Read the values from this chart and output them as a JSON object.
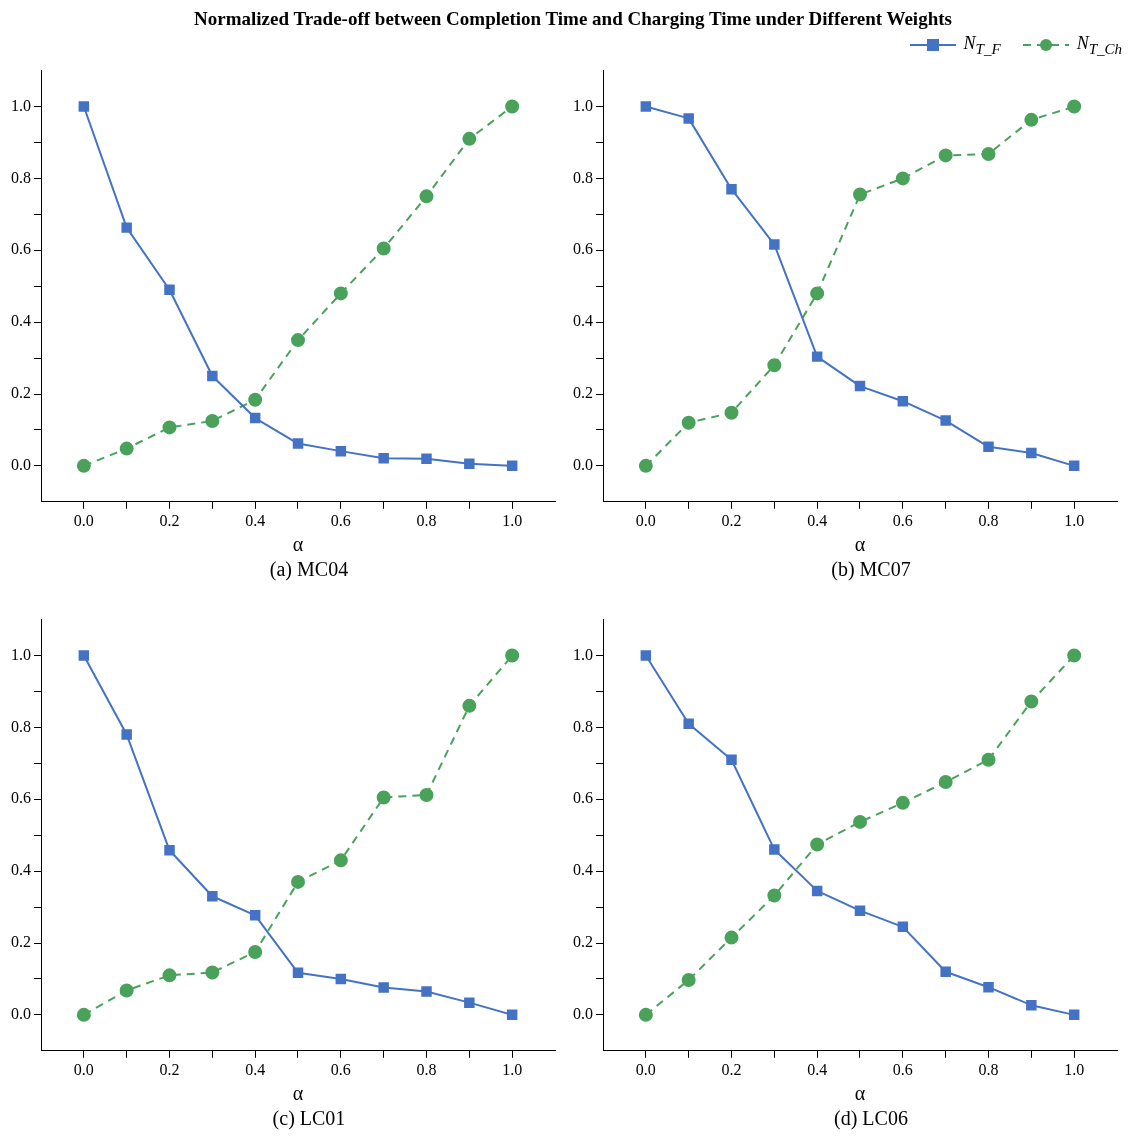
{
  "chart_data": [
    {
      "type": "line",
      "title": "Normalized Trade-off between Completion Time and Charging Time under Different Weights",
      "xlabel": "α",
      "annotations": [
        "(a) MC04"
      ],
      "x": [
        0,
        0.1,
        0.2,
        0.3,
        0.4,
        0.5,
        0.6,
        0.7,
        0.8,
        0.9,
        1.0
      ],
      "xlim": [
        -0.1,
        1.1
      ],
      "xticks": [
        {
          "value": 0,
          "label": "0.0"
        },
        {
          "value": 0.1,
          "label": null
        },
        {
          "value": 0.2,
          "label": "0.2"
        },
        {
          "value": 0.3,
          "label": null
        },
        {
          "value": 0.4,
          "label": "0.4"
        },
        {
          "value": 0.5,
          "label": null
        },
        {
          "value": 0.6,
          "label": "0.6"
        },
        {
          "value": 0.7,
          "label": null
        },
        {
          "value": 0.8,
          "label": "0.8"
        },
        {
          "value": 0.9,
          "label": null
        },
        {
          "value": 1,
          "label": "1.0"
        }
      ],
      "ylim": [
        -0.1,
        1.1
      ],
      "yticks": [
        {
          "value": 0,
          "label": "0.0"
        },
        {
          "value": 0.1,
          "label": null
        },
        {
          "value": 0.2,
          "label": "0.2"
        },
        {
          "value": 0.3,
          "label": null
        },
        {
          "value": 0.4,
          "label": "0.4"
        },
        {
          "value": 0.5,
          "label": null
        },
        {
          "value": 0.6,
          "label": "0.6"
        },
        {
          "value": 0.7,
          "label": null
        },
        {
          "value": 0.8,
          "label": "0.8"
        },
        {
          "value": 0.9,
          "label": null
        },
        {
          "value": 1,
          "label": "1.0"
        }
      ],
      "grid": false,
      "legend": false,
      "series": [
        {
          "color": "#4472c4",
          "marker": "square",
          "line_style": "solid",
          "values": [
            1.0,
            0.663,
            0.49,
            0.25,
            0.133,
            0.062,
            0.041,
            0.021,
            0.02,
            0.006,
            0.0
          ]
        },
        {
          "color": "#4aa25a",
          "marker": "circle",
          "line_style": "dashed",
          "values": [
            0.0,
            0.048,
            0.107,
            0.125,
            0.184,
            0.35,
            0.48,
            0.605,
            0.75,
            0.91,
            1.0
          ]
        }
      ]
    },
    {
      "type": "line",
      "xlabel": "α",
      "annotations": [
        "(b) MC07"
      ],
      "x": [
        0,
        0.1,
        0.2,
        0.3,
        0.4,
        0.5,
        0.6,
        0.7,
        0.8,
        0.9,
        1.0
      ],
      "xlim": [
        -0.1,
        1.1
      ],
      "xticks": [
        {
          "value": 0,
          "label": "0.0"
        },
        {
          "value": 0.1,
          "label": null
        },
        {
          "value": 0.2,
          "label": "0.2"
        },
        {
          "value": 0.3,
          "label": null
        },
        {
          "value": 0.4,
          "label": "0.4"
        },
        {
          "value": 0.5,
          "label": null
        },
        {
          "value": 0.6,
          "label": "0.6"
        },
        {
          "value": 0.7,
          "label": null
        },
        {
          "value": 0.8,
          "label": "0.8"
        },
        {
          "value": 0.9,
          "label": null
        },
        {
          "value": 1,
          "label": "1.0"
        }
      ],
      "ylim": [
        -0.1,
        1.1
      ],
      "yticks": [
        {
          "value": 0,
          "label": "0.0"
        },
        {
          "value": 0.1,
          "label": null
        },
        {
          "value": 0.2,
          "label": "0.2"
        },
        {
          "value": 0.3,
          "label": null
        },
        {
          "value": 0.4,
          "label": "0.4"
        },
        {
          "value": 0.5,
          "label": null
        },
        {
          "value": 0.6,
          "label": "0.6"
        },
        {
          "value": 0.7,
          "label": null
        },
        {
          "value": 0.8,
          "label": "0.8"
        },
        {
          "value": 0.9,
          "label": null
        },
        {
          "value": 1,
          "label": "1.0"
        }
      ],
      "grid": false,
      "legend": "top right",
      "series": [
        {
          "name": "N$_{T_F}$",
          "color": "#4472c4",
          "marker": "square",
          "line_style": "solid",
          "values": [
            1.0,
            0.967,
            0.77,
            0.616,
            0.304,
            0.222,
            0.18,
            0.126,
            0.053,
            0.036,
            0.0
          ]
        },
        {
          "name": "N$_{T_Ch}$",
          "color": "#4aa25a",
          "marker": "circle",
          "line_style": "dashed",
          "values": [
            0.0,
            0.12,
            0.148,
            0.28,
            0.48,
            0.755,
            0.8,
            0.864,
            0.868,
            0.963,
            1.0
          ]
        }
      ]
    },
    {
      "type": "line",
      "xlabel": "α",
      "annotations": [
        "(c) LC01"
      ],
      "x": [
        0,
        0.1,
        0.2,
        0.3,
        0.4,
        0.5,
        0.6,
        0.7,
        0.8,
        0.9,
        1.0
      ],
      "xlim": [
        -0.1,
        1.1
      ],
      "xticks": [
        {
          "value": 0,
          "label": "0.0"
        },
        {
          "value": 0.1,
          "label": null
        },
        {
          "value": 0.2,
          "label": "0.2"
        },
        {
          "value": 0.3,
          "label": null
        },
        {
          "value": 0.4,
          "label": "0.4"
        },
        {
          "value": 0.5,
          "label": null
        },
        {
          "value": 0.6,
          "label": "0.6"
        },
        {
          "value": 0.7,
          "label": null
        },
        {
          "value": 0.8,
          "label": "0.8"
        },
        {
          "value": 0.9,
          "label": null
        },
        {
          "value": 1,
          "label": "1.0"
        }
      ],
      "ylim": [
        -0.1,
        1.1
      ],
      "yticks": [
        {
          "value": 0,
          "label": "0.0"
        },
        {
          "value": 0.1,
          "label": null
        },
        {
          "value": 0.2,
          "label": "0.2"
        },
        {
          "value": 0.3,
          "label": null
        },
        {
          "value": 0.4,
          "label": "0.4"
        },
        {
          "value": 0.5,
          "label": null
        },
        {
          "value": 0.6,
          "label": "0.6"
        },
        {
          "value": 0.7,
          "label": null
        },
        {
          "value": 0.8,
          "label": "0.8"
        },
        {
          "value": 0.9,
          "label": null
        },
        {
          "value": 1,
          "label": "1.0"
        }
      ],
      "grid": false,
      "legend": false,
      "series": [
        {
          "color": "#4472c4",
          "marker": "square",
          "line_style": "solid",
          "values": [
            1.0,
            0.78,
            0.458,
            0.33,
            0.277,
            0.117,
            0.1,
            0.076,
            0.065,
            0.034,
            0.0
          ]
        },
        {
          "color": "#4aa25a",
          "marker": "circle",
          "line_style": "dashed",
          "values": [
            0.0,
            0.068,
            0.11,
            0.118,
            0.175,
            0.37,
            0.43,
            0.605,
            0.612,
            0.86,
            1.0
          ]
        }
      ]
    },
    {
      "type": "line",
      "xlabel": "α",
      "annotations": [
        "(d) LC06"
      ],
      "x": [
        0,
        0.1,
        0.2,
        0.3,
        0.4,
        0.5,
        0.6,
        0.7,
        0.8,
        0.9,
        1.0
      ],
      "xlim": [
        -0.1,
        1.1
      ],
      "xticks": [
        {
          "value": 0,
          "label": "0.0"
        },
        {
          "value": 0.1,
          "label": null
        },
        {
          "value": 0.2,
          "label": "0.2"
        },
        {
          "value": 0.3,
          "label": null
        },
        {
          "value": 0.4,
          "label": "0.4"
        },
        {
          "value": 0.5,
          "label": null
        },
        {
          "value": 0.6,
          "label": "0.6"
        },
        {
          "value": 0.7,
          "label": null
        },
        {
          "value": 0.8,
          "label": "0.8"
        },
        {
          "value": 0.9,
          "label": null
        },
        {
          "value": 1,
          "label": "1.0"
        }
      ],
      "ylim": [
        -0.1,
        1.1
      ],
      "yticks": [
        {
          "value": 0,
          "label": "0.0"
        },
        {
          "value": 0.1,
          "label": null
        },
        {
          "value": 0.2,
          "label": "0.2"
        },
        {
          "value": 0.3,
          "label": null
        },
        {
          "value": 0.4,
          "label": "0.4"
        },
        {
          "value": 0.5,
          "label": null
        },
        {
          "value": 0.6,
          "label": "0.6"
        },
        {
          "value": 0.7,
          "label": null
        },
        {
          "value": 0.8,
          "label": "0.8"
        },
        {
          "value": 0.9,
          "label": null
        },
        {
          "value": 1,
          "label": "1.0"
        }
      ],
      "grid": false,
      "legend": false,
      "series": [
        {
          "color": "#4472c4",
          "marker": "square",
          "line_style": "solid",
          "values": [
            1.0,
            0.81,
            0.71,
            0.46,
            0.345,
            0.29,
            0.245,
            0.12,
            0.077,
            0.027,
            0.0
          ]
        },
        {
          "color": "#4aa25a",
          "marker": "circle",
          "line_style": "dashed",
          "values": [
            0.0,
            0.097,
            0.215,
            0.332,
            0.474,
            0.537,
            0.59,
            0.648,
            0.71,
            0.872,
            1.0
          ]
        }
      ]
    }
  ]
}
